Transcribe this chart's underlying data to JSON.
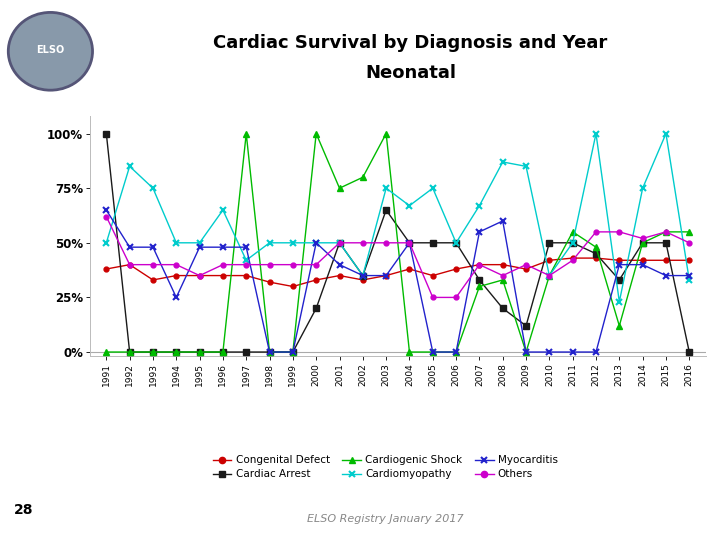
{
  "title_line1": "Cardiac Survival by Diagnosis and Year",
  "title_line2": "Neonatal",
  "years": [
    1991,
    1992,
    1993,
    1994,
    1995,
    1996,
    1997,
    1998,
    1999,
    2000,
    2001,
    2002,
    2003,
    2004,
    2005,
    2006,
    2007,
    2008,
    2009,
    2010,
    2011,
    2012,
    2013,
    2014,
    2015,
    2016
  ],
  "congenital_defect": [
    38,
    40,
    33,
    35,
    35,
    35,
    35,
    32,
    30,
    33,
    35,
    33,
    35,
    38,
    35,
    38,
    40,
    40,
    38,
    42,
    43,
    43,
    42,
    42,
    42,
    42
  ],
  "cardiac_arrest": [
    100,
    0,
    0,
    0,
    0,
    0,
    0,
    0,
    0,
    20,
    50,
    35,
    65,
    50,
    50,
    50,
    33,
    20,
    12,
    50,
    50,
    45,
    33,
    50,
    50,
    0
  ],
  "cardiogenic_shock": [
    0,
    0,
    0,
    0,
    0,
    0,
    100,
    0,
    0,
    100,
    75,
    80,
    100,
    0,
    0,
    0,
    30,
    33,
    0,
    35,
    55,
    48,
    12,
    50,
    55,
    55
  ],
  "cardiomyopathy": [
    50,
    85,
    75,
    50,
    50,
    65,
    42,
    50,
    50,
    50,
    50,
    35,
    75,
    67,
    75,
    50,
    67,
    87,
    85,
    35,
    50,
    100,
    23,
    75,
    100,
    33
  ],
  "myocarditis": [
    65,
    48,
    48,
    25,
    48,
    48,
    48,
    0,
    0,
    50,
    40,
    35,
    35,
    50,
    0,
    0,
    55,
    60,
    0,
    0,
    0,
    0,
    40,
    40,
    35,
    35
  ],
  "others": [
    62,
    40,
    40,
    40,
    35,
    40,
    40,
    40,
    40,
    40,
    50,
    50,
    50,
    50,
    25,
    25,
    40,
    35,
    40,
    35,
    42,
    55,
    55,
    52,
    55,
    50
  ],
  "colors": {
    "congenital_defect": "#cc0000",
    "cardiac_arrest": "#1a1a1a",
    "cardiogenic_shock": "#00bb00",
    "cardiomyopathy": "#00cccc",
    "myocarditis": "#2222cc",
    "others": "#cc00cc"
  },
  "footer": "ELSO Registry January 2017",
  "slide_number": "28",
  "header_top_color": "#6b7fa8",
  "header_bottom_color": "#8899bb",
  "sidebar_color": "#7a8fba",
  "thin_line_color": "#aaaacc"
}
